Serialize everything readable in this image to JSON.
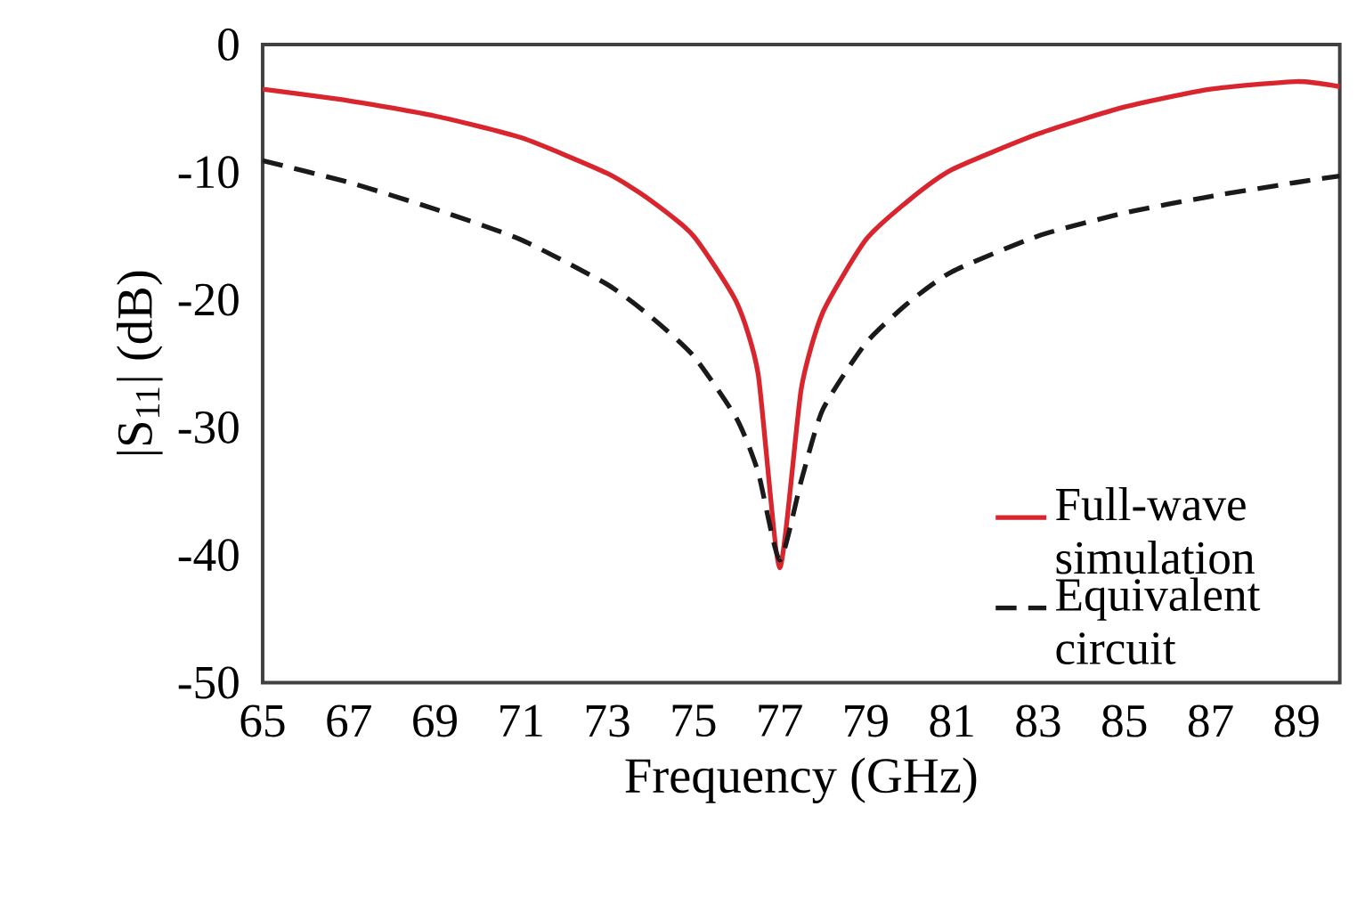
{
  "chart_data": {
    "type": "line",
    "xlabel": "Frequency (GHz)",
    "ylabel": "|S$_{11}$| (dB)",
    "xlim": [
      65,
      90
    ],
    "ylim": [
      -50,
      0
    ],
    "xticks": [
      65,
      67,
      69,
      71,
      73,
      75,
      77,
      79,
      81,
      83,
      85,
      87,
      89
    ],
    "yticks": [
      -50,
      -40,
      -30,
      -20,
      -10,
      0
    ],
    "x": [
      65,
      67,
      69,
      71,
      73,
      74,
      75,
      76,
      76.5,
      77,
      77.5,
      78,
      79,
      80,
      81,
      83,
      85,
      87,
      89,
      90
    ],
    "series": [
      {
        "name": "Full-wave simulation",
        "color": "#d9252e",
        "line_style": "solid",
        "values": [
          -3.5,
          -4.4,
          -5.6,
          -7.3,
          -10.1,
          -12.2,
          -15,
          -20.2,
          -25.8,
          -41,
          -27,
          -21,
          -15.3,
          -12.2,
          -9.8,
          -7,
          -4.9,
          -3.5,
          -2.9,
          -3.3
        ]
      },
      {
        "name": "Equivalent circuit",
        "color": "#1a1a1a",
        "line_style": "dashed",
        "values": [
          -9.1,
          -10.8,
          -12.9,
          -15.3,
          -18.8,
          -21.3,
          -24.4,
          -29.3,
          -33.5,
          -40.4,
          -34.2,
          -28.6,
          -23.4,
          -20.2,
          -17.8,
          -15,
          -13.2,
          -11.9,
          -10.8,
          -10.3
        ]
      }
    ],
    "legend": "right",
    "marker": "none",
    "grid": false
  }
}
